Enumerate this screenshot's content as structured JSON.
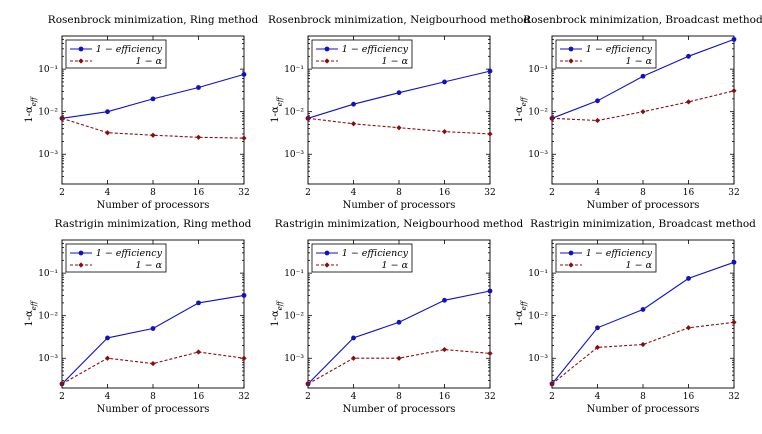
{
  "colors": {
    "efficiency": "#1010c8",
    "alpha": "#8b0c0c"
  },
  "chart_data": [
    {
      "type": "line",
      "title": "Rosenbrock minimization, Ring method",
      "xlabel": "Number of processors",
      "ylabel": "1-α_eff",
      "xscale": "log2",
      "yscale": "log",
      "x": [
        2,
        4,
        8,
        16,
        32
      ],
      "xticks": [
        "2",
        "4",
        "8",
        "16",
        "32"
      ],
      "ylim": [
        0.0002,
        0.6
      ],
      "yticks": [
        {
          "value": 0.1,
          "label": "10⁻¹"
        },
        {
          "value": 0.01,
          "label": "10⁻²"
        },
        {
          "value": 0.001,
          "label": "10⁻³"
        }
      ],
      "legend": "top-left",
      "series": [
        {
          "name": "1 − efficiency",
          "style": "solid",
          "marker": "circle",
          "color": "#1010c8",
          "values": [
            0.007,
            0.01,
            0.02,
            0.037,
            0.075
          ]
        },
        {
          "name": "1 − α",
          "style": "dashed",
          "marker": "diamond",
          "color": "#8b0c0c",
          "values": [
            0.007,
            0.0032,
            0.0028,
            0.0025,
            0.0024
          ]
        }
      ]
    },
    {
      "type": "line",
      "title": "Rosenbrock minimization, Neigbourhood method",
      "xlabel": "Number of processors",
      "ylabel": "1-α_eff",
      "xscale": "log2",
      "yscale": "log",
      "x": [
        2,
        4,
        8,
        16,
        32
      ],
      "xticks": [
        "2",
        "4",
        "8",
        "16",
        "32"
      ],
      "ylim": [
        0.0002,
        0.6
      ],
      "yticks": [
        {
          "value": 0.1,
          "label": "10⁻¹"
        },
        {
          "value": 0.01,
          "label": "10⁻²"
        },
        {
          "value": 0.001,
          "label": "10⁻³"
        }
      ],
      "legend": "top-left",
      "series": [
        {
          "name": "1 − efficiency",
          "style": "solid",
          "marker": "circle",
          "color": "#1010c8",
          "values": [
            0.007,
            0.015,
            0.028,
            0.05,
            0.09
          ]
        },
        {
          "name": "1 − α",
          "style": "dashed",
          "marker": "diamond",
          "color": "#8b0c0c",
          "values": [
            0.007,
            0.0052,
            0.0042,
            0.0034,
            0.003
          ]
        }
      ]
    },
    {
      "type": "line",
      "title": "Rosenbrock minimization, Broadcast method",
      "xlabel": "Number of processors",
      "ylabel": "1-α_eff",
      "xscale": "log2",
      "yscale": "log",
      "x": [
        2,
        4,
        8,
        16,
        32
      ],
      "xticks": [
        "2",
        "4",
        "8",
        "16",
        "32"
      ],
      "ylim": [
        0.0002,
        0.6
      ],
      "yticks": [
        {
          "value": 0.1,
          "label": "10⁻¹"
        },
        {
          "value": 0.01,
          "label": "10⁻²"
        },
        {
          "value": 0.001,
          "label": "10⁻³"
        }
      ],
      "legend": "top-left",
      "series": [
        {
          "name": "1 − efficiency",
          "style": "solid",
          "marker": "circle",
          "color": "#1010c8",
          "values": [
            0.007,
            0.018,
            0.068,
            0.2,
            0.5
          ]
        },
        {
          "name": "1 − α",
          "style": "dashed",
          "marker": "diamond",
          "color": "#8b0c0c",
          "values": [
            0.007,
            0.0062,
            0.01,
            0.017,
            0.031
          ]
        }
      ]
    },
    {
      "type": "line",
      "title": "Rastrigin minimization, Ring method",
      "xlabel": "Number of processors",
      "ylabel": "1-α_eff",
      "xscale": "log2",
      "yscale": "log",
      "x": [
        2,
        4,
        8,
        16,
        32
      ],
      "xticks": [
        "2",
        "4",
        "8",
        "16",
        "32"
      ],
      "ylim": [
        0.0002,
        0.6
      ],
      "yticks": [
        {
          "value": 0.1,
          "label": "10⁻¹"
        },
        {
          "value": 0.01,
          "label": "10⁻²"
        },
        {
          "value": 0.001,
          "label": "10⁻³"
        }
      ],
      "legend": "top-left",
      "series": [
        {
          "name": "1 − efficiency",
          "style": "solid",
          "marker": "circle",
          "color": "#1010c8",
          "values": [
            0.00025,
            0.003,
            0.005,
            0.02,
            0.03
          ]
        },
        {
          "name": "1 − α",
          "style": "dashed",
          "marker": "diamond",
          "color": "#8b0c0c",
          "values": [
            0.00025,
            0.001,
            0.00075,
            0.0014,
            0.001
          ]
        }
      ]
    },
    {
      "type": "line",
      "title": "Rastrigin minimization, Neigbourhood method",
      "xlabel": "Number of processors",
      "ylabel": "1-α_eff",
      "xscale": "log2",
      "yscale": "log",
      "x": [
        2,
        4,
        8,
        16,
        32
      ],
      "xticks": [
        "2",
        "4",
        "8",
        "16",
        "32"
      ],
      "ylim": [
        0.0002,
        0.6
      ],
      "yticks": [
        {
          "value": 0.1,
          "label": "10⁻¹"
        },
        {
          "value": 0.01,
          "label": "10⁻²"
        },
        {
          "value": 0.001,
          "label": "10⁻³"
        }
      ],
      "legend": "top-left",
      "series": [
        {
          "name": "1 − efficiency",
          "style": "solid",
          "marker": "circle",
          "color": "#1010c8",
          "values": [
            0.00025,
            0.003,
            0.007,
            0.023,
            0.038
          ]
        },
        {
          "name": "1 − α",
          "style": "dashed",
          "marker": "diamond",
          "color": "#8b0c0c",
          "values": [
            0.00025,
            0.001,
            0.001,
            0.0016,
            0.0013
          ]
        }
      ]
    },
    {
      "type": "line",
      "title": "Rastrigin minimization, Broadcast method",
      "xlabel": "Number of processors",
      "ylabel": "1-α_eff",
      "xscale": "log2",
      "yscale": "log",
      "x": [
        2,
        4,
        8,
        16,
        32
      ],
      "xticks": [
        "2",
        "4",
        "8",
        "16",
        "32"
      ],
      "ylim": [
        0.0002,
        0.6
      ],
      "yticks": [
        {
          "value": 0.1,
          "label": "10⁻¹"
        },
        {
          "value": 0.01,
          "label": "10⁻²"
        },
        {
          "value": 0.001,
          "label": "10⁻³"
        }
      ],
      "legend": "top-left",
      "series": [
        {
          "name": "1 − efficiency",
          "style": "solid",
          "marker": "circle",
          "color": "#1010c8",
          "values": [
            0.00025,
            0.0052,
            0.014,
            0.075,
            0.18
          ]
        },
        {
          "name": "1 − α",
          "style": "dashed",
          "marker": "diamond",
          "color": "#8b0c0c",
          "values": [
            0.00025,
            0.0018,
            0.0021,
            0.0052,
            0.007
          ]
        }
      ]
    }
  ]
}
